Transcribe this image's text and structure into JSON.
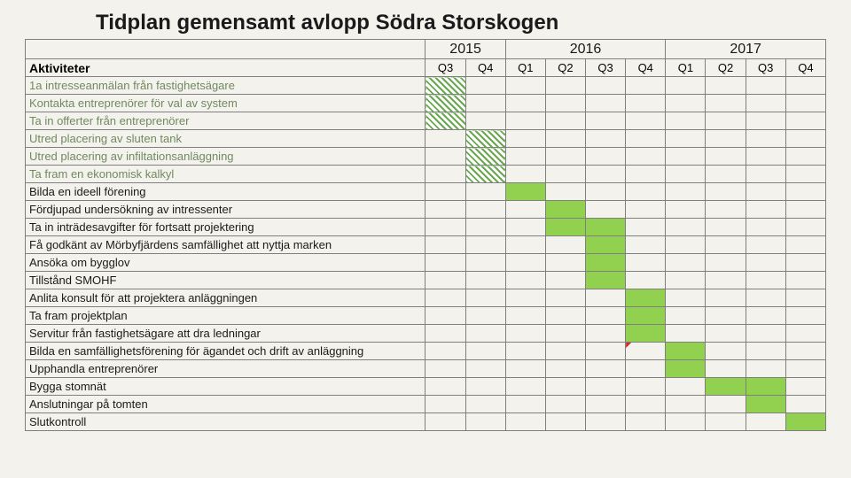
{
  "title": "Tidplan gemensamt avlopp Södra Storskogen",
  "years": [
    "2015",
    "2016",
    "2017"
  ],
  "quarters": [
    "Q3",
    "Q4",
    "Q1",
    "Q2",
    "Q3",
    "Q4",
    "Q1",
    "Q2",
    "Q3",
    "Q4"
  ],
  "activities_header": "Aktiviteter",
  "background_color": "#f4f2ed",
  "border_color": "#7f7f7f",
  "solid_fill": "#92d050",
  "hatch_stripe_color": "#6aa84f",
  "hatch_bg_color": "#ffffff",
  "red_marker_color": "#d62728",
  "label_color_active": "#6f8a5f",
  "label_color_normal": "#1a1a1a",
  "title_fontsize": 24,
  "label_fontsize": 13,
  "year_fontsize": 16,
  "quarter_fontsize": 13,
  "rows": [
    {
      "label": "1a intresseanmälan från fastighetsägare",
      "color": "#6f8a5f",
      "cells": [
        "hatch",
        "",
        "",
        "",
        "",
        "",
        "",
        "",
        "",
        ""
      ]
    },
    {
      "label": "Kontakta entreprenörer för val av system",
      "color": "#6f8a5f",
      "cells": [
        "hatch",
        "",
        "",
        "",
        "",
        "",
        "",
        "",
        "",
        ""
      ]
    },
    {
      "label": "Ta in offerter från entreprenörer",
      "color": "#6f8a5f",
      "cells": [
        "hatch",
        "",
        "",
        "",
        "",
        "",
        "",
        "",
        "",
        ""
      ]
    },
    {
      "label": "Utred placering av sluten tank",
      "color": "#6f8a5f",
      "cells": [
        "",
        "hatch",
        "",
        "",
        "",
        "",
        "",
        "",
        "",
        ""
      ]
    },
    {
      "label": "Utred placering av infiltationsanläggning",
      "color": "#6f8a5f",
      "cells": [
        "",
        "hatch",
        "",
        "",
        "",
        "",
        "",
        "",
        "",
        ""
      ]
    },
    {
      "label": "Ta fram en ekonomisk kalkyl",
      "color": "#6f8a5f",
      "cells": [
        "",
        "hatch",
        "",
        "",
        "",
        "",
        "",
        "",
        "",
        ""
      ]
    },
    {
      "label": "Bilda en ideell förening",
      "color": "#1a1a1a",
      "cells": [
        "",
        "",
        "solid",
        "",
        "",
        "",
        "",
        "",
        "",
        ""
      ]
    },
    {
      "label": "Fördjupad undersökning av intressenter",
      "color": "#1a1a1a",
      "cells": [
        "",
        "",
        "",
        "solid",
        "",
        "",
        "",
        "",
        "",
        ""
      ]
    },
    {
      "label": "Ta in inträdesavgifter för fortsatt projektering",
      "color": "#1a1a1a",
      "cells": [
        "",
        "",
        "",
        "solid",
        "solid",
        "",
        "",
        "",
        "",
        ""
      ]
    },
    {
      "label": "Få godkänt av Mörbyfjärdens samfällighet att nyttja marken",
      "color": "#1a1a1a",
      "cells": [
        "",
        "",
        "",
        "",
        "solid",
        "",
        "",
        "",
        "",
        ""
      ]
    },
    {
      "label": "Ansöka om bygglov",
      "color": "#1a1a1a",
      "cells": [
        "",
        "",
        "",
        "",
        "solid",
        "",
        "",
        "",
        "",
        ""
      ]
    },
    {
      "label": "Tillstånd SMOHF",
      "color": "#1a1a1a",
      "cells": [
        "",
        "",
        "",
        "",
        "solid",
        "",
        "",
        "",
        "",
        ""
      ]
    },
    {
      "label": "Anlita konsult för att projektera anläggningen",
      "color": "#1a1a1a",
      "cells": [
        "",
        "",
        "",
        "",
        "",
        "solid",
        "",
        "",
        "",
        ""
      ]
    },
    {
      "label": "Ta fram projektplan",
      "color": "#1a1a1a",
      "cells": [
        "",
        "",
        "",
        "",
        "",
        "solid",
        "",
        "",
        "",
        ""
      ]
    },
    {
      "label": "Servitur från fastighetsägare att dra ledningar",
      "color": "#1a1a1a",
      "cells": [
        "",
        "",
        "",
        "",
        "",
        "solid",
        "",
        "",
        "",
        ""
      ]
    },
    {
      "label": "Bilda en samfällighetsförening för ägandet och drift av anläggning",
      "color": "#1a1a1a",
      "cells": [
        "",
        "",
        "",
        "",
        "",
        "",
        "solid",
        "",
        "",
        ""
      ],
      "red_marker_col": 5
    },
    {
      "label": "Upphandla entreprenörer",
      "color": "#1a1a1a",
      "cells": [
        "",
        "",
        "",
        "",
        "",
        "",
        "solid",
        "",
        "",
        ""
      ]
    },
    {
      "label": "Bygga stomnät",
      "color": "#1a1a1a",
      "cells": [
        "",
        "",
        "",
        "",
        "",
        "",
        "",
        "solid",
        "solid",
        ""
      ]
    },
    {
      "label": "Anslutningar på tomten",
      "color": "#1a1a1a",
      "cells": [
        "",
        "",
        "",
        "",
        "",
        "",
        "",
        "",
        "solid",
        ""
      ]
    },
    {
      "label": "Slutkontroll",
      "color": "#1a1a1a",
      "cells": [
        "",
        "",
        "",
        "",
        "",
        "",
        "",
        "",
        "",
        "solid"
      ]
    }
  ]
}
